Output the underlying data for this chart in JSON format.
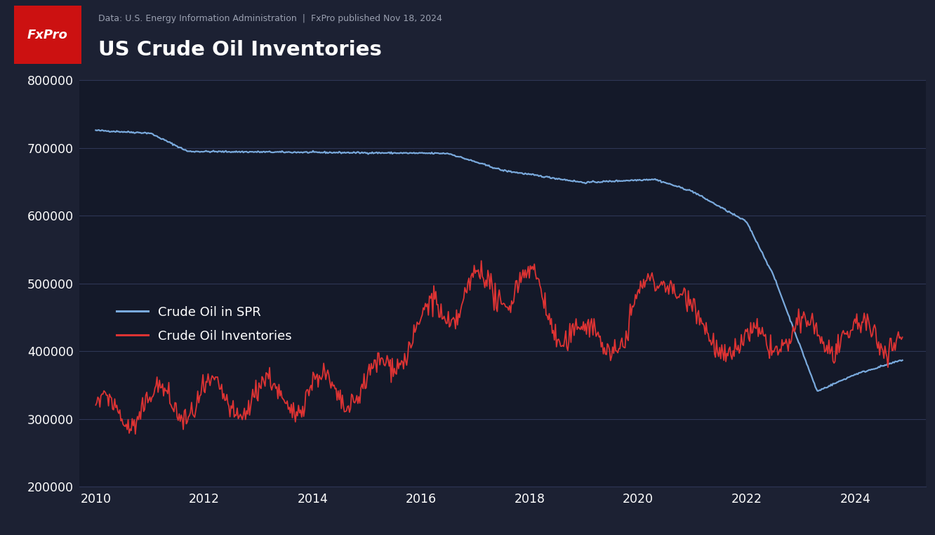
{
  "title": "US Crude Oil Inventories",
  "subtitle": "Data: U.S. Energy Information Administration  |  FxPro published Nov 18, 2024",
  "bg_color": "#1c2133",
  "header_bg": "#252c40",
  "plot_bg": "#141929",
  "grid_color": "#2e3655",
  "text_color": "#ffffff",
  "subtitle_color": "#9aa0b0",
  "spr_color": "#7aaadd",
  "inv_color": "#dd3333",
  "legend_label_spr": "Crude Oil in SPR",
  "legend_label_inv": "Crude Oil Inventories",
  "fxpro_bg": "#cc1111",
  "fxpro_text": "FxPro",
  "ylim": [
    200000,
    800000
  ],
  "yticks": [
    200000,
    300000,
    400000,
    500000,
    600000,
    700000,
    800000
  ],
  "xlabel_years": [
    2010,
    2012,
    2014,
    2016,
    2018,
    2020,
    2022,
    2024
  ]
}
